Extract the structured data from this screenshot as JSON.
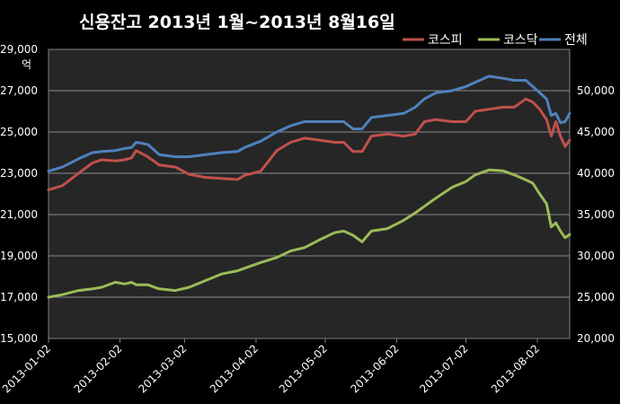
{
  "chart_data": {
    "type": "line",
    "title": "신용잔고 2013년 1월~2013년 8월16일",
    "left_unit": "억",
    "x_tick_labels": [
      "2013-01-02",
      "2013-02-02",
      "2013-03-02",
      "2013-04-02",
      "2013-05-02",
      "2013-06-02",
      "2013-07-02",
      "2013-08-02"
    ],
    "x_range": [
      "2013-01-02",
      "2013-08-16"
    ],
    "y_left": {
      "min": 15000,
      "max": 29000,
      "step": 2000,
      "labels": [
        "15,000",
        "17,000",
        "19,000",
        "21,000",
        "23,000",
        "25,000",
        "27,000",
        "29,000"
      ]
    },
    "y_right": {
      "min": 20000,
      "max": 55000,
      "step": 5000,
      "labels": [
        "20,000",
        "25,000",
        "30,000",
        "35,000",
        "40,000",
        "45,000",
        "50,000"
      ]
    },
    "grid": "horizontal",
    "legend_position": "top-right",
    "series": [
      {
        "name": "코스피",
        "axis": "left",
        "color": "#c0504d",
        "points": [
          [
            "2013-01-02",
            22200
          ],
          [
            "2013-01-08",
            22400
          ],
          [
            "2013-01-15",
            23000
          ],
          [
            "2013-01-21",
            23500
          ],
          [
            "2013-01-25",
            23650
          ],
          [
            "2013-01-31",
            23600
          ],
          [
            "2013-02-04",
            23650
          ],
          [
            "2013-02-07",
            23750
          ],
          [
            "2013-02-09",
            24100
          ],
          [
            "2013-02-14",
            23800
          ],
          [
            "2013-02-19",
            23400
          ],
          [
            "2013-02-26",
            23300
          ],
          [
            "2013-03-04",
            22950
          ],
          [
            "2013-03-11",
            22800
          ],
          [
            "2013-03-18",
            22750
          ],
          [
            "2013-03-25",
            22700
          ],
          [
            "2013-03-28",
            22900
          ],
          [
            "2013-04-04",
            23100
          ],
          [
            "2013-04-11",
            24100
          ],
          [
            "2013-04-17",
            24500
          ],
          [
            "2013-04-23",
            24700
          ],
          [
            "2013-04-30",
            24600
          ],
          [
            "2013-05-06",
            24500
          ],
          [
            "2013-05-10",
            24500
          ],
          [
            "2013-05-14",
            24050
          ],
          [
            "2013-05-18",
            24050
          ],
          [
            "2013-05-22",
            24800
          ],
          [
            "2013-05-29",
            24900
          ],
          [
            "2013-06-05",
            24800
          ],
          [
            "2013-06-10",
            24900
          ],
          [
            "2013-06-14",
            25500
          ],
          [
            "2013-06-19",
            25600
          ],
          [
            "2013-06-26",
            25500
          ],
          [
            "2013-07-02",
            25500
          ],
          [
            "2013-07-06",
            26000
          ],
          [
            "2013-07-12",
            26100
          ],
          [
            "2013-07-18",
            26200
          ],
          [
            "2013-07-23",
            26200
          ],
          [
            "2013-07-28",
            26600
          ],
          [
            "2013-07-31",
            26450
          ],
          [
            "2013-08-03",
            26100
          ],
          [
            "2013-08-06",
            25600
          ],
          [
            "2013-08-08",
            24800
          ],
          [
            "2013-08-10",
            25500
          ],
          [
            "2013-08-12",
            24800
          ],
          [
            "2013-08-14",
            24300
          ],
          [
            "2013-08-16",
            24600
          ]
        ]
      },
      {
        "name": "코스닥",
        "axis": "right",
        "color": "#9bbb59",
        "points": [
          [
            "2013-01-02",
            25000
          ],
          [
            "2013-01-08",
            25300
          ],
          [
            "2013-01-15",
            25800
          ],
          [
            "2013-01-21",
            26000
          ],
          [
            "2013-01-25",
            26200
          ],
          [
            "2013-01-31",
            26800
          ],
          [
            "2013-02-04",
            26600
          ],
          [
            "2013-02-07",
            26800
          ],
          [
            "2013-02-09",
            26500
          ],
          [
            "2013-02-14",
            26500
          ],
          [
            "2013-02-19",
            26000
          ],
          [
            "2013-02-26",
            25800
          ],
          [
            "2013-03-04",
            26200
          ],
          [
            "2013-03-11",
            27000
          ],
          [
            "2013-03-18",
            27800
          ],
          [
            "2013-03-25",
            28200
          ],
          [
            "2013-03-28",
            28500
          ],
          [
            "2013-04-04",
            29200
          ],
          [
            "2013-04-11",
            29800
          ],
          [
            "2013-04-17",
            30600
          ],
          [
            "2013-04-23",
            31000
          ],
          [
            "2013-04-30",
            32000
          ],
          [
            "2013-05-06",
            32800
          ],
          [
            "2013-05-10",
            33000
          ],
          [
            "2013-05-14",
            32500
          ],
          [
            "2013-05-18",
            31700
          ],
          [
            "2013-05-22",
            33000
          ],
          [
            "2013-05-29",
            33300
          ],
          [
            "2013-06-05",
            34300
          ],
          [
            "2013-06-10",
            35200
          ],
          [
            "2013-06-14",
            36000
          ],
          [
            "2013-06-19",
            37000
          ],
          [
            "2013-06-26",
            38300
          ],
          [
            "2013-07-02",
            39000
          ],
          [
            "2013-07-06",
            39800
          ],
          [
            "2013-07-12",
            40400
          ],
          [
            "2013-07-18",
            40300
          ],
          [
            "2013-07-23",
            39800
          ],
          [
            "2013-07-28",
            39200
          ],
          [
            "2013-07-31",
            38800
          ],
          [
            "2013-08-03",
            37500
          ],
          [
            "2013-08-06",
            36300
          ],
          [
            "2013-08-08",
            33500
          ],
          [
            "2013-08-10",
            34000
          ],
          [
            "2013-08-12",
            33000
          ],
          [
            "2013-08-14",
            32200
          ],
          [
            "2013-08-16",
            32600
          ]
        ]
      },
      {
        "name": "전체",
        "axis": "left",
        "color": "#4f81bd",
        "points": [
          [
            "2013-01-02",
            23100
          ],
          [
            "2013-01-08",
            23300
          ],
          [
            "2013-01-15",
            23700
          ],
          [
            "2013-01-21",
            24000
          ],
          [
            "2013-01-25",
            24050
          ],
          [
            "2013-01-31",
            24100
          ],
          [
            "2013-02-04",
            24200
          ],
          [
            "2013-02-07",
            24250
          ],
          [
            "2013-02-09",
            24500
          ],
          [
            "2013-02-14",
            24400
          ],
          [
            "2013-02-19",
            23900
          ],
          [
            "2013-02-26",
            23800
          ],
          [
            "2013-03-04",
            23800
          ],
          [
            "2013-03-11",
            23900
          ],
          [
            "2013-03-18",
            24000
          ],
          [
            "2013-03-25",
            24050
          ],
          [
            "2013-03-28",
            24250
          ],
          [
            "2013-04-04",
            24550
          ],
          [
            "2013-04-11",
            25000
          ],
          [
            "2013-04-17",
            25300
          ],
          [
            "2013-04-23",
            25500
          ],
          [
            "2013-04-30",
            25500
          ],
          [
            "2013-05-06",
            25500
          ],
          [
            "2013-05-10",
            25500
          ],
          [
            "2013-05-14",
            25150
          ],
          [
            "2013-05-18",
            25150
          ],
          [
            "2013-05-22",
            25700
          ],
          [
            "2013-05-29",
            25800
          ],
          [
            "2013-06-05",
            25900
          ],
          [
            "2013-06-10",
            26200
          ],
          [
            "2013-06-14",
            26600
          ],
          [
            "2013-06-19",
            26900
          ],
          [
            "2013-06-26",
            27000
          ],
          [
            "2013-07-02",
            27200
          ],
          [
            "2013-07-06",
            27400
          ],
          [
            "2013-07-12",
            27700
          ],
          [
            "2013-07-18",
            27600
          ],
          [
            "2013-07-23",
            27500
          ],
          [
            "2013-07-28",
            27500
          ],
          [
            "2013-07-31",
            27200
          ],
          [
            "2013-08-03",
            26900
          ],
          [
            "2013-08-06",
            26600
          ],
          [
            "2013-08-08",
            25800
          ],
          [
            "2013-08-10",
            25900
          ],
          [
            "2013-08-12",
            25450
          ],
          [
            "2013-08-14",
            25500
          ],
          [
            "2013-08-16",
            25900
          ]
        ]
      }
    ]
  }
}
